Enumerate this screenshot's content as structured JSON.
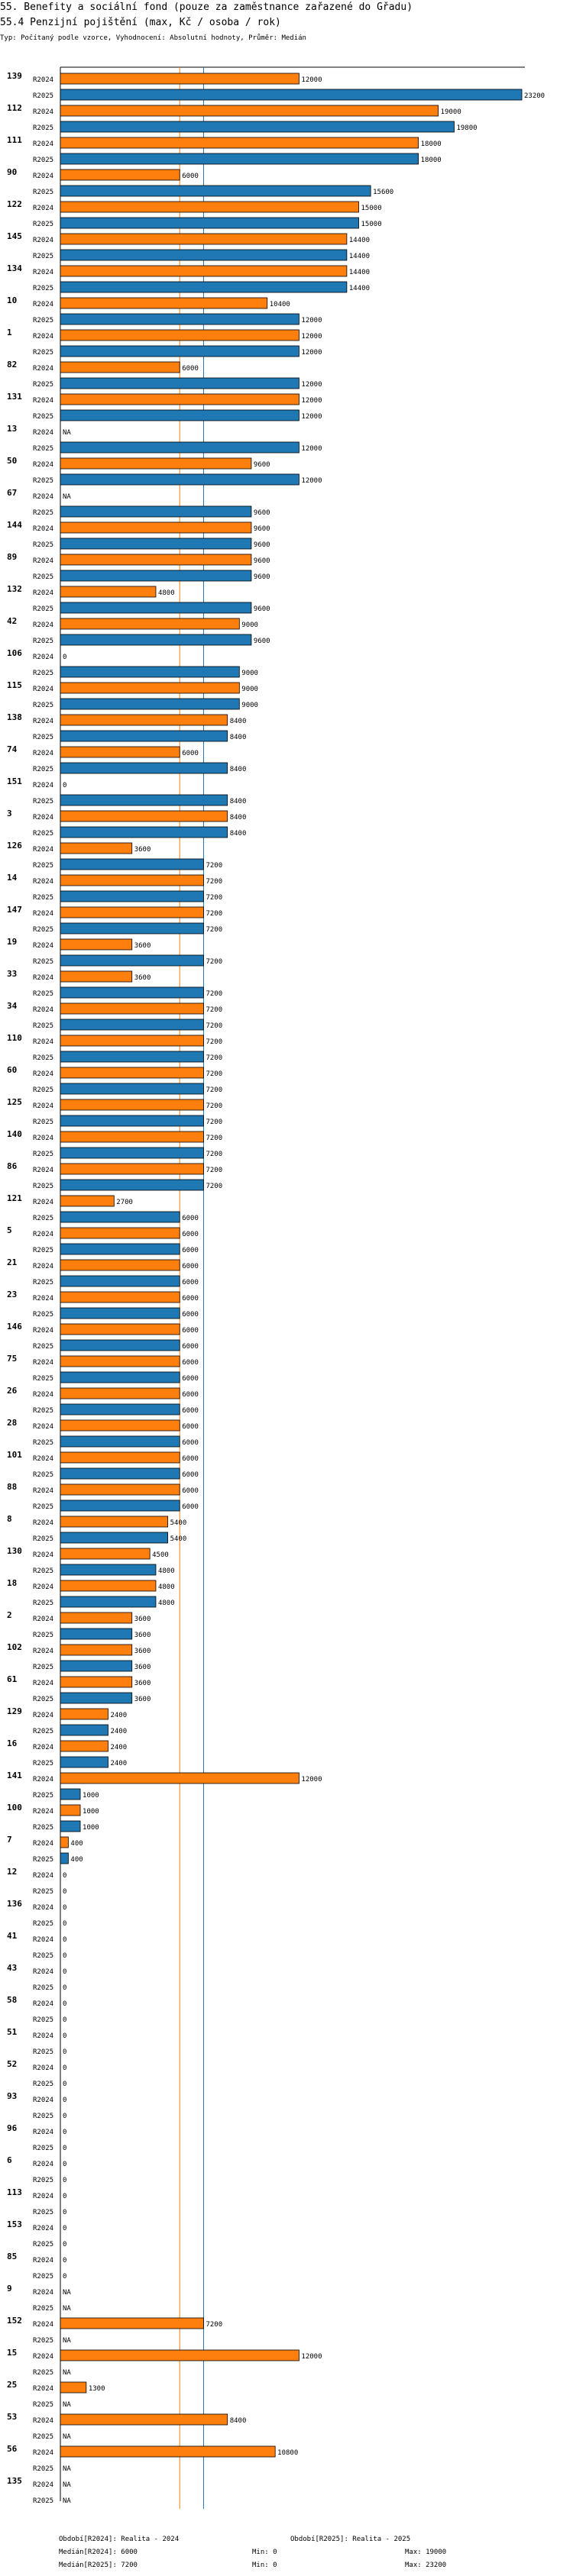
{
  "header": {
    "title": "55. Benefity a sociální fond (pouze za zaměstnance zařazené do Gřadu)",
    "subtitle": "55.4 Penzijní pojištění (max, Kč / osoba / rok)",
    "note": "Typ: Počítaný podle vzorce, Vyhodnocení: Absolutní hodnoty, Průměr: Medián"
  },
  "colors": {
    "r2024": "#ff7f0e",
    "r2025": "#1f77b4",
    "median2024_line": "#ff7f0e",
    "median2025_line": "#1f77b4"
  },
  "chart_data": {
    "type": "bar",
    "orientation": "horizontal",
    "xlim": [
      0,
      23200
    ],
    "series_names": [
      "R2024",
      "R2025"
    ],
    "na_label": "NA",
    "reference_lines": [
      {
        "series": "R2024",
        "value": 6000
      },
      {
        "series": "R2025",
        "value": 7200
      }
    ],
    "categories": [
      {
        "id": "139",
        "R2024": 12000,
        "R2025": 23200
      },
      {
        "id": "112",
        "R2024": 19000,
        "R2025": 19800
      },
      {
        "id": "111",
        "R2024": 18000,
        "R2025": 18000
      },
      {
        "id": "90",
        "R2024": 6000,
        "R2025": 15600
      },
      {
        "id": "122",
        "R2024": 15000,
        "R2025": 15000
      },
      {
        "id": "145",
        "R2024": 14400,
        "R2025": 14400
      },
      {
        "id": "134",
        "R2024": 14400,
        "R2025": 14400
      },
      {
        "id": "10",
        "R2024": 10400,
        "R2025": 12000
      },
      {
        "id": "1",
        "R2024": 12000,
        "R2025": 12000
      },
      {
        "id": "82",
        "R2024": 6000,
        "R2025": 12000
      },
      {
        "id": "131",
        "R2024": 12000,
        "R2025": 12000
      },
      {
        "id": "13",
        "R2024": null,
        "R2025": 12000
      },
      {
        "id": "50",
        "R2024": 9600,
        "R2025": 12000
      },
      {
        "id": "67",
        "R2024": null,
        "R2025": 9600
      },
      {
        "id": "144",
        "R2024": 9600,
        "R2025": 9600
      },
      {
        "id": "89",
        "R2024": 9600,
        "R2025": 9600
      },
      {
        "id": "132",
        "R2024": 4800,
        "R2025": 9600
      },
      {
        "id": "42",
        "R2024": 9000,
        "R2025": 9600
      },
      {
        "id": "106",
        "R2024": 0,
        "R2025": 9000
      },
      {
        "id": "115",
        "R2024": 9000,
        "R2025": 9000
      },
      {
        "id": "138",
        "R2024": 8400,
        "R2025": 8400
      },
      {
        "id": "74",
        "R2024": 6000,
        "R2025": 8400
      },
      {
        "id": "151",
        "R2024": 0,
        "R2025": 8400
      },
      {
        "id": "3",
        "R2024": 8400,
        "R2025": 8400
      },
      {
        "id": "126",
        "R2024": 3600,
        "R2025": 7200
      },
      {
        "id": "14",
        "R2024": 7200,
        "R2025": 7200
      },
      {
        "id": "147",
        "R2024": 7200,
        "R2025": 7200
      },
      {
        "id": "19",
        "R2024": 3600,
        "R2025": 7200
      },
      {
        "id": "33",
        "R2024": 3600,
        "R2025": 7200
      },
      {
        "id": "34",
        "R2024": 7200,
        "R2025": 7200
      },
      {
        "id": "110",
        "R2024": 7200,
        "R2025": 7200
      },
      {
        "id": "60",
        "R2024": 7200,
        "R2025": 7200
      },
      {
        "id": "125",
        "R2024": 7200,
        "R2025": 7200
      },
      {
        "id": "140",
        "R2024": 7200,
        "R2025": 7200
      },
      {
        "id": "86",
        "R2024": 7200,
        "R2025": 7200
      },
      {
        "id": "121",
        "R2024": 2700,
        "R2025": 6000
      },
      {
        "id": "5",
        "R2024": 6000,
        "R2025": 6000
      },
      {
        "id": "21",
        "R2024": 6000,
        "R2025": 6000
      },
      {
        "id": "23",
        "R2024": 6000,
        "R2025": 6000
      },
      {
        "id": "146",
        "R2024": 6000,
        "R2025": 6000
      },
      {
        "id": "75",
        "R2024": 6000,
        "R2025": 6000
      },
      {
        "id": "26",
        "R2024": 6000,
        "R2025": 6000
      },
      {
        "id": "28",
        "R2024": 6000,
        "R2025": 6000
      },
      {
        "id": "101",
        "R2024": 6000,
        "R2025": 6000
      },
      {
        "id": "88",
        "R2024": 6000,
        "R2025": 6000
      },
      {
        "id": "8",
        "R2024": 5400,
        "R2025": 5400
      },
      {
        "id": "130",
        "R2024": 4500,
        "R2025": 4800
      },
      {
        "id": "18",
        "R2024": 4800,
        "R2025": 4800
      },
      {
        "id": "2",
        "R2024": 3600,
        "R2025": 3600
      },
      {
        "id": "102",
        "R2024": 3600,
        "R2025": 3600
      },
      {
        "id": "61",
        "R2024": 3600,
        "R2025": 3600
      },
      {
        "id": "129",
        "R2024": 2400,
        "R2025": 2400
      },
      {
        "id": "16",
        "R2024": 2400,
        "R2025": 2400
      },
      {
        "id": "141",
        "R2024": 12000,
        "R2025": 1000
      },
      {
        "id": "100",
        "R2024": 1000,
        "R2025": 1000
      },
      {
        "id": "7",
        "R2024": 400,
        "R2025": 400
      },
      {
        "id": "12",
        "R2024": 0,
        "R2025": 0
      },
      {
        "id": "136",
        "R2024": 0,
        "R2025": 0
      },
      {
        "id": "41",
        "R2024": 0,
        "R2025": 0
      },
      {
        "id": "43",
        "R2024": 0,
        "R2025": 0
      },
      {
        "id": "58",
        "R2024": 0,
        "R2025": 0
      },
      {
        "id": "51",
        "R2024": 0,
        "R2025": 0
      },
      {
        "id": "52",
        "R2024": 0,
        "R2025": 0
      },
      {
        "id": "93",
        "R2024": 0,
        "R2025": 0
      },
      {
        "id": "96",
        "R2024": 0,
        "R2025": 0
      },
      {
        "id": "6",
        "R2024": 0,
        "R2025": 0
      },
      {
        "id": "113",
        "R2024": 0,
        "R2025": 0
      },
      {
        "id": "153",
        "R2024": 0,
        "R2025": 0
      },
      {
        "id": "85",
        "R2024": 0,
        "R2025": 0
      },
      {
        "id": "9",
        "R2024": null,
        "R2025": null
      },
      {
        "id": "152",
        "R2024": 7200,
        "R2025": null
      },
      {
        "id": "15",
        "R2024": 12000,
        "R2025": null
      },
      {
        "id": "25",
        "R2024": 1300,
        "R2025": null
      },
      {
        "id": "53",
        "R2024": 8400,
        "R2025": null
      },
      {
        "id": "56",
        "R2024": 10800,
        "R2025": null
      },
      {
        "id": "135",
        "R2024": null,
        "R2025": null
      }
    ]
  },
  "footer": {
    "period_2024": "Období[R2024]: Realita - 2024",
    "period_2025": "Období[R2025]: Realita - 2025",
    "median_2024": "Medián[R2024]: 6000",
    "min_2024": "Min: 0",
    "max_2024": "Max: 19000",
    "median_2025": "Medián[R2025]: 7200",
    "min_2025": "Min: 0",
    "max_2025": "Max: 23200"
  }
}
